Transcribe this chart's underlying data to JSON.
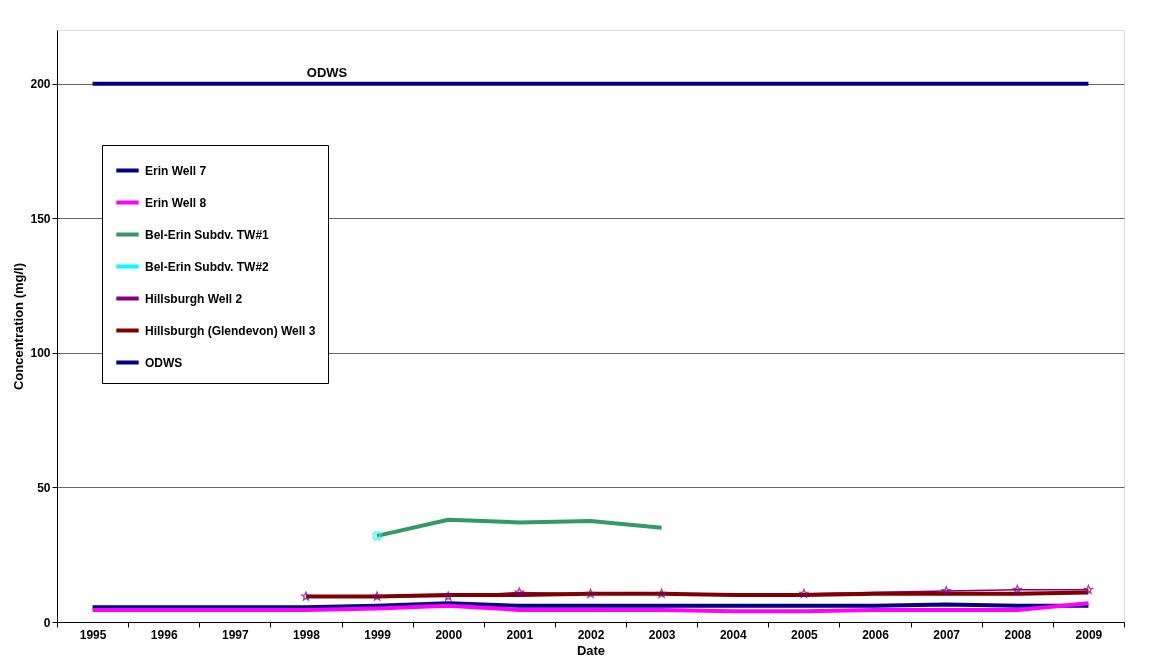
{
  "chart_data": {
    "type": "line",
    "xlabel": "Date",
    "ylabel": "Concentration (mg/l)",
    "categories": [
      "1995",
      "1996",
      "1997",
      "1998",
      "1999",
      "2000",
      "2001",
      "2002",
      "2003",
      "2004",
      "2005",
      "2006",
      "2007",
      "2008",
      "2009"
    ],
    "ylim": [
      0,
      220
    ],
    "yticks": [
      0,
      50,
      100,
      150,
      200
    ],
    "grid": "y",
    "legend": "top left",
    "series": [
      {
        "name": "Erin Well 7",
        "color": "#000080",
        "marker": "none",
        "values": [
          5.5,
          5.5,
          5.5,
          5.5,
          6,
          7,
          6,
          6,
          6,
          6,
          6,
          6,
          6.5,
          6,
          6
        ]
      },
      {
        "name": "Erin Well 8",
        "color": "#ff00ff",
        "marker": "none",
        "values": [
          4.5,
          4.5,
          4.5,
          4.5,
          5,
          6,
          4.5,
          4.5,
          4.5,
          4,
          4,
          4.5,
          4.5,
          4.5,
          7
        ]
      },
      {
        "name": "Bel-Erin Subdv. TW#1",
        "color": "#339966",
        "marker": "none",
        "values": [
          null,
          null,
          null,
          null,
          32,
          38,
          37,
          37.5,
          35,
          null,
          null,
          null,
          null,
          null,
          null
        ]
      },
      {
        "name": "Bel-Erin Subdv. TW#2",
        "color": "#00ffff",
        "marker": "cross",
        "values": [
          null,
          null,
          null,
          null,
          32,
          null,
          null,
          null,
          null,
          null,
          null,
          null,
          null,
          null,
          null
        ]
      },
      {
        "name": "Hillsburgh Well 2",
        "color": "#800080",
        "marker": "star",
        "values": [
          null,
          null,
          null,
          9.5,
          9.5,
          9.5,
          11,
          10.5,
          10.5,
          null,
          10.5,
          null,
          11.5,
          12,
          12
        ]
      },
      {
        "name": "Hillsburgh (Glendevon) Well 3",
        "color": "#800000",
        "marker": "none",
        "values": [
          null,
          null,
          null,
          9.5,
          9.5,
          10,
          10,
          10.5,
          10.5,
          10,
          10,
          10.5,
          10.5,
          10.5,
          11
        ]
      },
      {
        "name": "ODWS",
        "color": "#000080",
        "marker": "none",
        "values": [
          200,
          200,
          200,
          200,
          200,
          200,
          200,
          200,
          200,
          200,
          200,
          200,
          200,
          200,
          200
        ]
      }
    ],
    "annotations": [
      {
        "text": "ODWS",
        "y": 200
      }
    ]
  }
}
